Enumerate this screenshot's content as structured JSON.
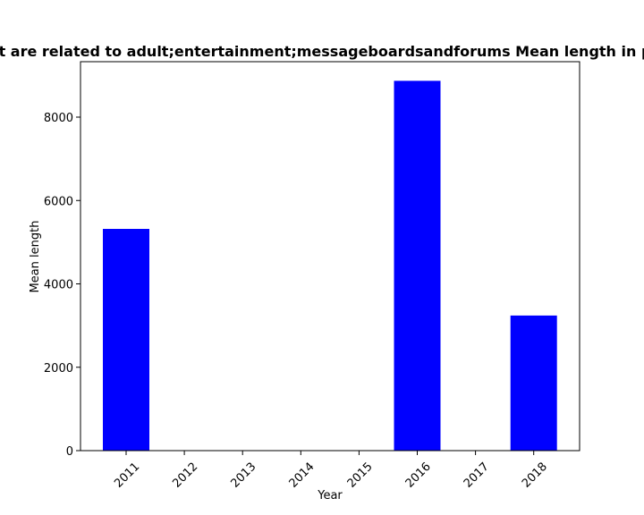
{
  "chart_data": {
    "type": "bar",
    "title": "Websites that are related to adult;entertainment;messageboardsandforums Mean length in privacy policies",
    "xlabel": "Year",
    "ylabel": "Mean length",
    "categories": [
      "2011",
      "2012",
      "2013",
      "2014",
      "2015",
      "2016",
      "2017",
      "2018"
    ],
    "values": [
      5320,
      0,
      0,
      0,
      0,
      8870,
      0,
      3240
    ],
    "ylim": [
      0,
      9330
    ],
    "yticks": [
      0,
      2000,
      4000,
      6000,
      8000
    ],
    "bar_color": "#0000ff",
    "grid": false,
    "legend": "none"
  }
}
